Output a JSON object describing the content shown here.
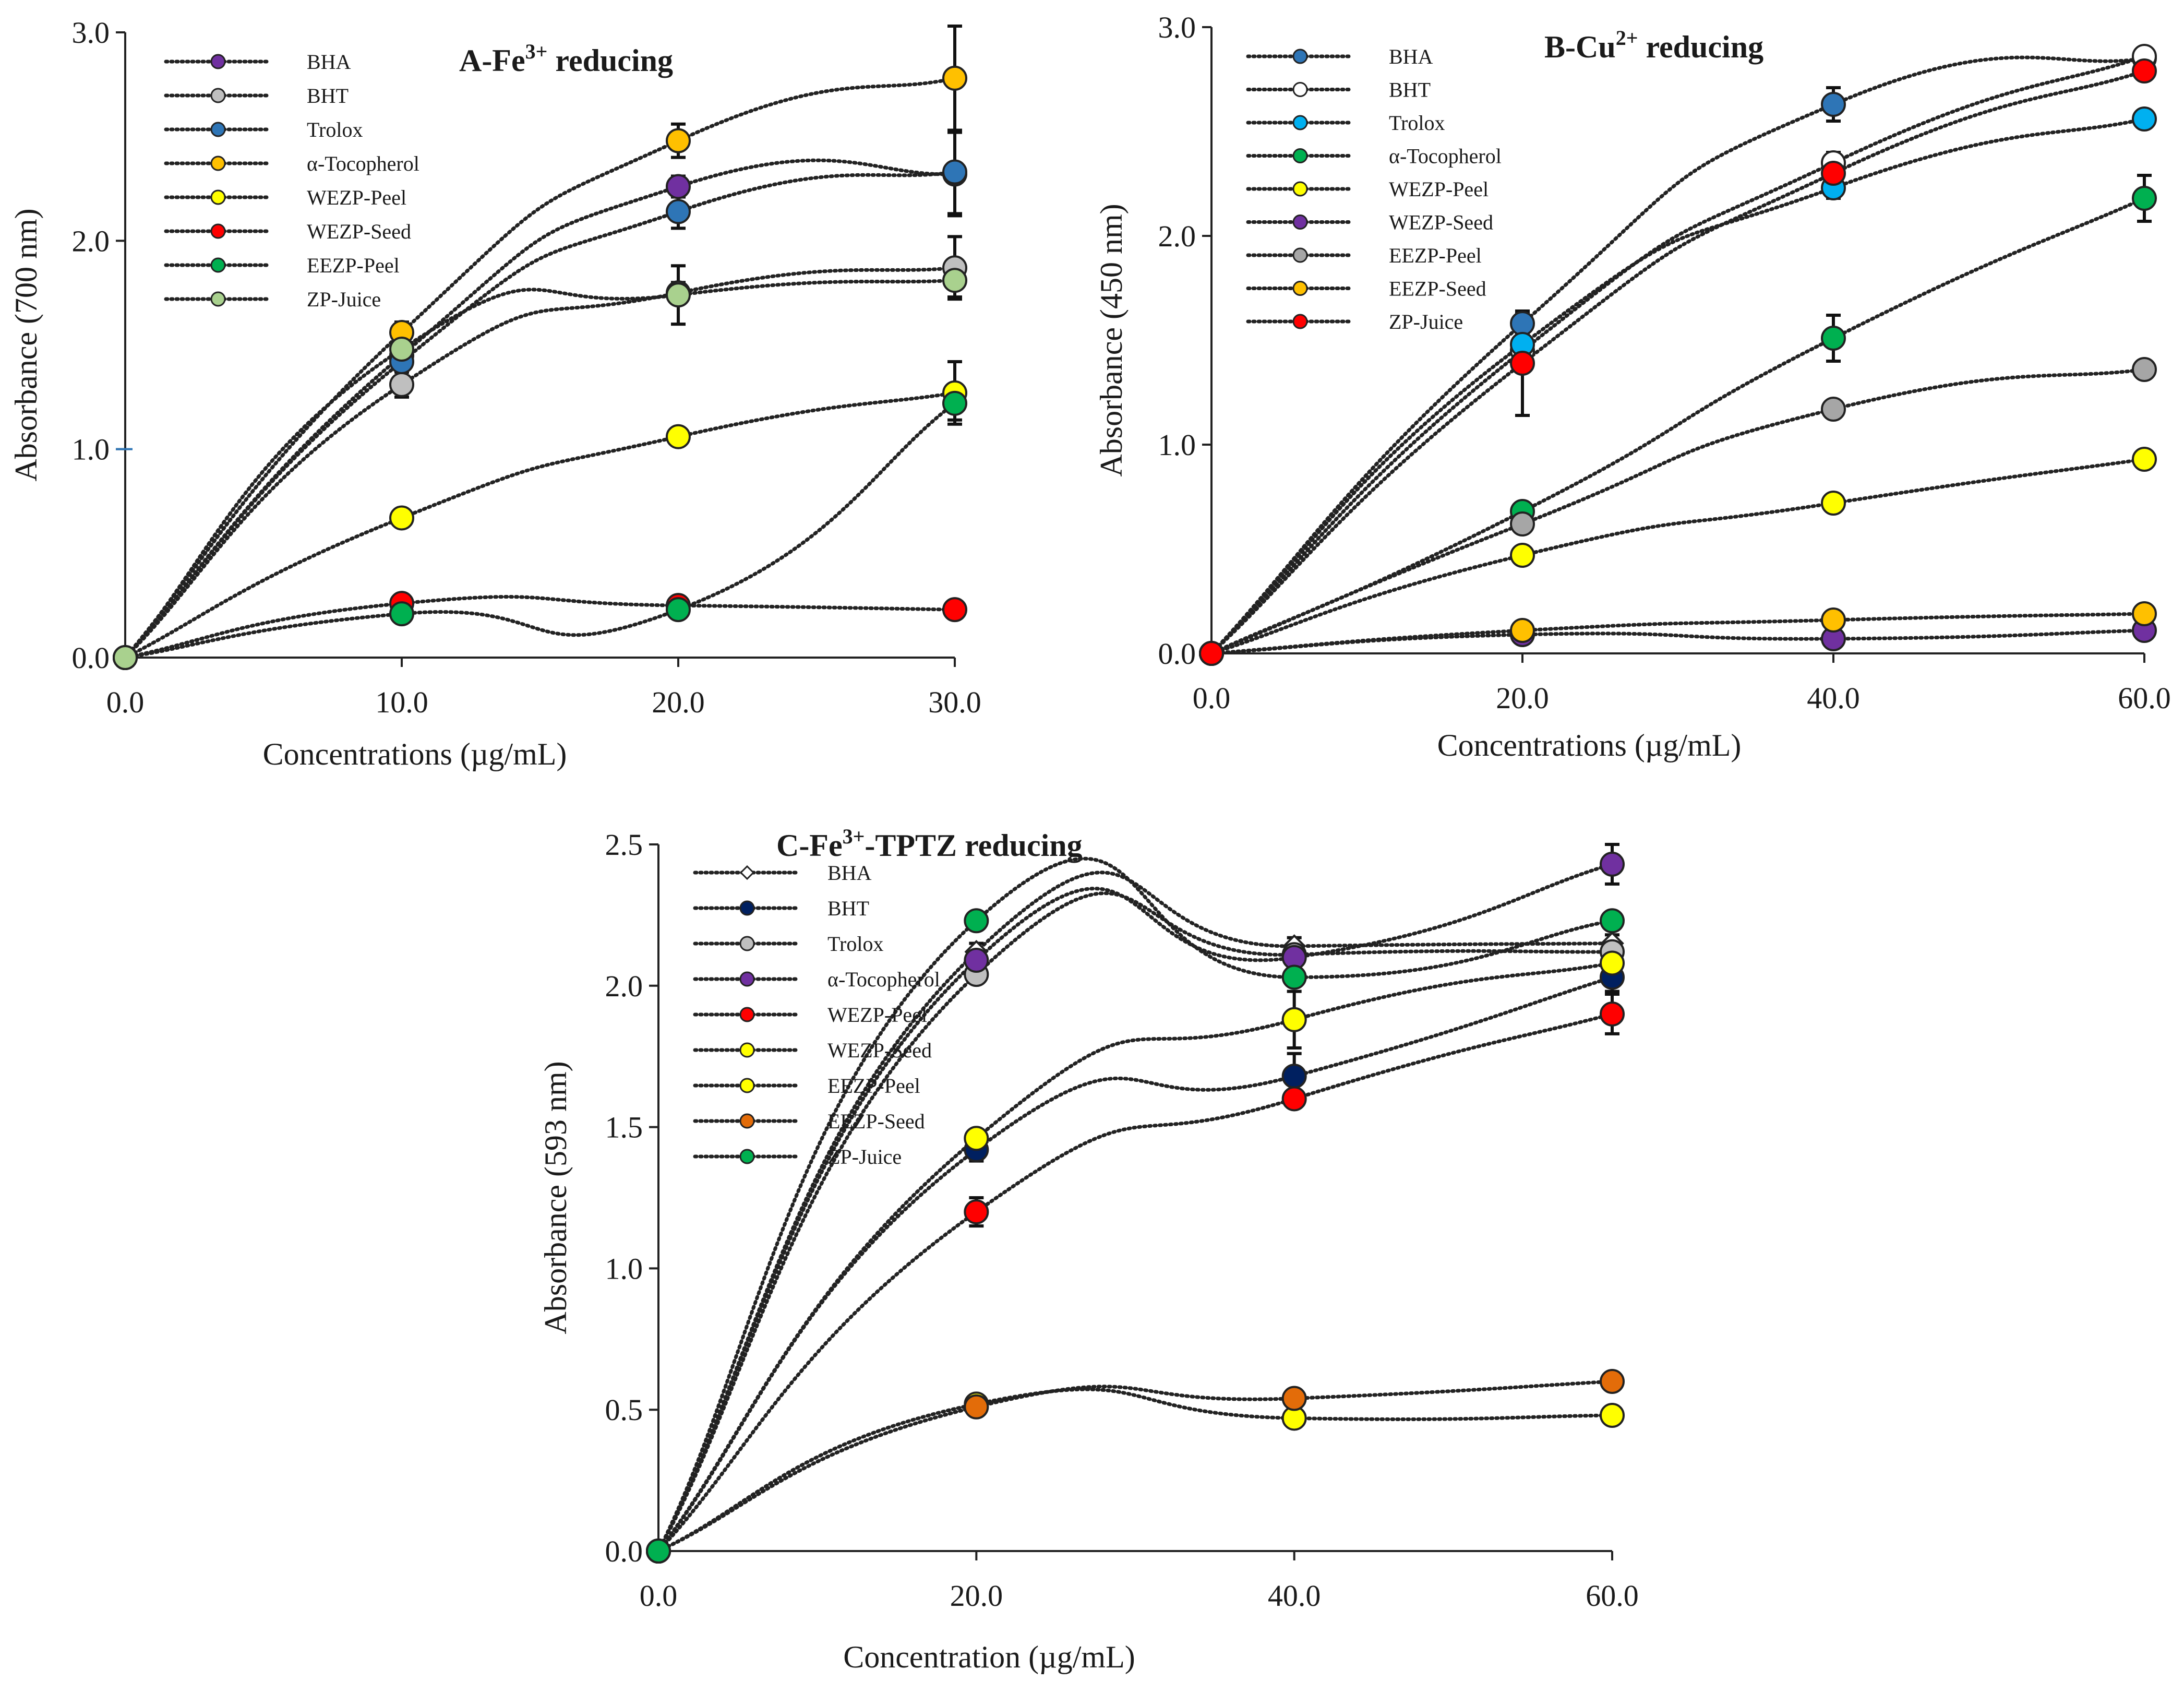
{
  "chart_data": [
    {
      "type": "scatter",
      "title": "A-Fe3+ reducing",
      "title_parts": {
        "prefix": "A-Fe",
        "sup": "3+",
        "suffix": " reducing"
      },
      "xlabel": "Concentrations (µg/mL)",
      "ylabel": "Absorbance (700 nm)",
      "xlim": [
        0,
        30
      ],
      "ylim": [
        0,
        3
      ],
      "xticks": [
        0,
        10,
        20,
        30
      ],
      "xtick_labels": [
        "0.0",
        "10.0",
        "20.0",
        "30.0"
      ],
      "yticks": [
        0,
        1,
        2,
        3
      ],
      "ytick_labels": [
        "0.0",
        "1.0",
        "2.0",
        "3.0"
      ],
      "x": [
        0,
        10,
        20,
        30
      ],
      "grid": false,
      "legend_position": "top-left",
      "series": [
        {
          "name": "BHA",
          "color": "#7030a0",
          "marker": "circle",
          "values": [
            0,
            1.45,
            2.26,
            2.32
          ],
          "errors": [
            0,
            0.05,
            0.05,
            0.2
          ]
        },
        {
          "name": "BHT",
          "color": "#bfbfbf",
          "marker": "circle",
          "values": [
            0,
            1.31,
            1.75,
            1.87
          ],
          "errors": [
            0,
            0.06,
            0.05,
            0.15
          ]
        },
        {
          "name": "Trolox",
          "color": "#2e75b6",
          "marker": "circle",
          "values": [
            0,
            1.42,
            2.14,
            2.33
          ],
          "errors": [
            0,
            0.05,
            0.08,
            0.2
          ]
        },
        {
          "name": "α-Tocopherol",
          "color": "#ffc000",
          "marker": "circle",
          "values": [
            0,
            1.56,
            2.48,
            2.78
          ],
          "errors": [
            0,
            0.05,
            0.08,
            0.25
          ]
        },
        {
          "name": "WEZP-Peel",
          "color": "#ffff00",
          "marker": "circle",
          "values": [
            0,
            0.67,
            1.06,
            1.27
          ],
          "errors": [
            0,
            0.02,
            0.02,
            0.15
          ]
        },
        {
          "name": "WEZP-Seed",
          "color": "#ff0000",
          "marker": "circle",
          "values": [
            0,
            0.26,
            0.25,
            0.23
          ],
          "errors": [
            0,
            0.02,
            0.02,
            0.02
          ]
        },
        {
          "name": "EEZP-Peel",
          "color": "#00b050",
          "marker": "circle",
          "values": [
            0,
            0.21,
            0.23,
            1.22
          ],
          "errors": [
            0,
            0.02,
            0.02,
            0.08
          ]
        },
        {
          "name": "ZP-Juice",
          "color": "#a9d18e",
          "marker": "circle",
          "values": [
            0,
            1.48,
            1.74,
            1.81
          ],
          "errors": [
            0,
            0.05,
            0.14,
            0.08
          ]
        }
      ]
    },
    {
      "type": "scatter",
      "title": "B-Cu2+ reducing",
      "title_parts": {
        "prefix": "B-Cu",
        "sup": "2+",
        "suffix": " reducing"
      },
      "xlabel": "Concentrations (µg/mL)",
      "ylabel": "Absorbance (450 nm)",
      "xlim": [
        0,
        60
      ],
      "ylim": [
        0,
        3
      ],
      "xticks": [
        0,
        20,
        40,
        60
      ],
      "xtick_labels": [
        "0.0",
        "20.0",
        "40.0",
        "60.0"
      ],
      "yticks": [
        0,
        1,
        2,
        3
      ],
      "ytick_labels": [
        "0.0",
        "1.0",
        "2.0",
        "3.0"
      ],
      "x": [
        0,
        20,
        40,
        60
      ],
      "grid": false,
      "legend_position": "top-left",
      "series": [
        {
          "name": "BHA",
          "color": "#2e75b6",
          "marker": "circle",
          "values": [
            0,
            1.58,
            2.63,
            2.85
          ],
          "errors": [
            0,
            0.05,
            0.08,
            0.03
          ]
        },
        {
          "name": "BHT",
          "color": "#ffffff",
          "marker": "circle",
          "values": [
            0,
            1.45,
            2.35,
            2.86
          ],
          "errors": [
            0,
            0.05,
            0.05,
            0.03
          ]
        },
        {
          "name": "Trolox",
          "color": "#00b0f0",
          "marker": "circle",
          "values": [
            0,
            1.48,
            2.23,
            2.56
          ],
          "errors": [
            0,
            0.05,
            0.05,
            0.03
          ]
        },
        {
          "name": "α-Tocopherol",
          "color": "#00b050",
          "marker": "circle",
          "values": [
            0,
            0.68,
            1.51,
            2.18
          ],
          "errors": [
            0,
            0.02,
            0.11,
            0.11
          ]
        },
        {
          "name": "WEZP-Peel",
          "color": "#ffff00",
          "marker": "circle",
          "values": [
            0,
            0.47,
            0.72,
            0.93
          ],
          "errors": [
            0,
            0.02,
            0.02,
            0.02
          ]
        },
        {
          "name": "WEZP-Seed",
          "color": "#7030a0",
          "marker": "circle",
          "values": [
            0,
            0.09,
            0.07,
            0.11
          ],
          "errors": [
            0,
            0.01,
            0.01,
            0.01
          ]
        },
        {
          "name": "EEZP-Peel",
          "color": "#a6a6a6",
          "marker": "circle",
          "values": [
            0,
            0.62,
            1.17,
            1.36
          ],
          "errors": [
            0,
            0.02,
            0.02,
            0.02
          ]
        },
        {
          "name": "EEZP-Seed",
          "color": "#ffc000",
          "marker": "circle",
          "values": [
            0,
            0.11,
            0.16,
            0.19
          ],
          "errors": [
            0,
            0.01,
            0.01,
            0.01
          ]
        },
        {
          "name": "ZP-Juice",
          "color": "#ff0000",
          "marker": "circle",
          "values": [
            0,
            1.39,
            2.3,
            2.79
          ],
          "errors": [
            0,
            0.25,
            0.05,
            0.03
          ]
        }
      ]
    },
    {
      "type": "scatter",
      "title": "C-Fe3+-TPTZ reducing",
      "title_parts": {
        "prefix": "C-Fe",
        "sup": "3+",
        "suffix": "-TPTZ reducing"
      },
      "xlabel": "Concentration (µg/mL)",
      "ylabel": "Absorbance (593 nm)",
      "xlim": [
        0,
        60
      ],
      "ylim": [
        0,
        2.5
      ],
      "xticks": [
        0,
        20,
        40,
        60
      ],
      "xtick_labels": [
        "0.0",
        "20.0",
        "40.0",
        "60.0"
      ],
      "yticks": [
        0,
        0.5,
        1,
        1.5,
        2,
        2.5
      ],
      "ytick_labels": [
        "0.0",
        "0.5",
        "1.0",
        "1.5",
        "2.0",
        "2.5"
      ],
      "x": [
        0,
        20,
        40,
        60
      ],
      "grid": false,
      "legend_position": "top-left",
      "series": [
        {
          "name": "BHA",
          "color": "#ffffff",
          "marker": "diamond",
          "values": [
            0,
            2.12,
            2.14,
            2.15
          ],
          "errors": [
            0,
            0.03,
            0.03,
            0.03
          ]
        },
        {
          "name": "BHT",
          "color": "#002060",
          "marker": "circle",
          "values": [
            0,
            1.42,
            1.68,
            2.03
          ],
          "errors": [
            0,
            0.04,
            0.08,
            0.05
          ]
        },
        {
          "name": "Trolox",
          "color": "#bfbfbf",
          "marker": "circle",
          "values": [
            0,
            2.04,
            2.11,
            2.12
          ],
          "errors": [
            0,
            0.03,
            0.03,
            0.03
          ]
        },
        {
          "name": "α-Tocopherol",
          "color": "#7030a0",
          "marker": "circle",
          "values": [
            0,
            2.09,
            2.1,
            2.43
          ],
          "errors": [
            0,
            0.03,
            0.03,
            0.07
          ]
        },
        {
          "name": "WEZP-Peel",
          "color": "#ff0000",
          "marker": "circle",
          "values": [
            0,
            1.2,
            1.6,
            1.9
          ],
          "errors": [
            0,
            0.05,
            0.03,
            0.07
          ]
        },
        {
          "name": "WEZP-Seed",
          "color": "#ffff00",
          "marker": "circle",
          "values": [
            0,
            0.52,
            0.47,
            0.48
          ],
          "errors": [
            0,
            0.03,
            0.01,
            0.01
          ]
        },
        {
          "name": "EEZP-Peel",
          "color": "#ffff00",
          "marker": "circle",
          "values": [
            0,
            1.46,
            1.88,
            2.08
          ],
          "errors": [
            0,
            0.03,
            0.1,
            0.03
          ]
        },
        {
          "name": "EEZP-Seed",
          "color": "#e36c09",
          "marker": "circle",
          "values": [
            0,
            0.51,
            0.54,
            0.6
          ],
          "errors": [
            0,
            0.02,
            0.01,
            0.01
          ]
        },
        {
          "name": "ZP-Juice",
          "color": "#00b050",
          "marker": "circle",
          "values": [
            0,
            2.23,
            2.03,
            2.23
          ],
          "errors": [
            0,
            0.02,
            0.02,
            0.02
          ]
        }
      ]
    }
  ]
}
